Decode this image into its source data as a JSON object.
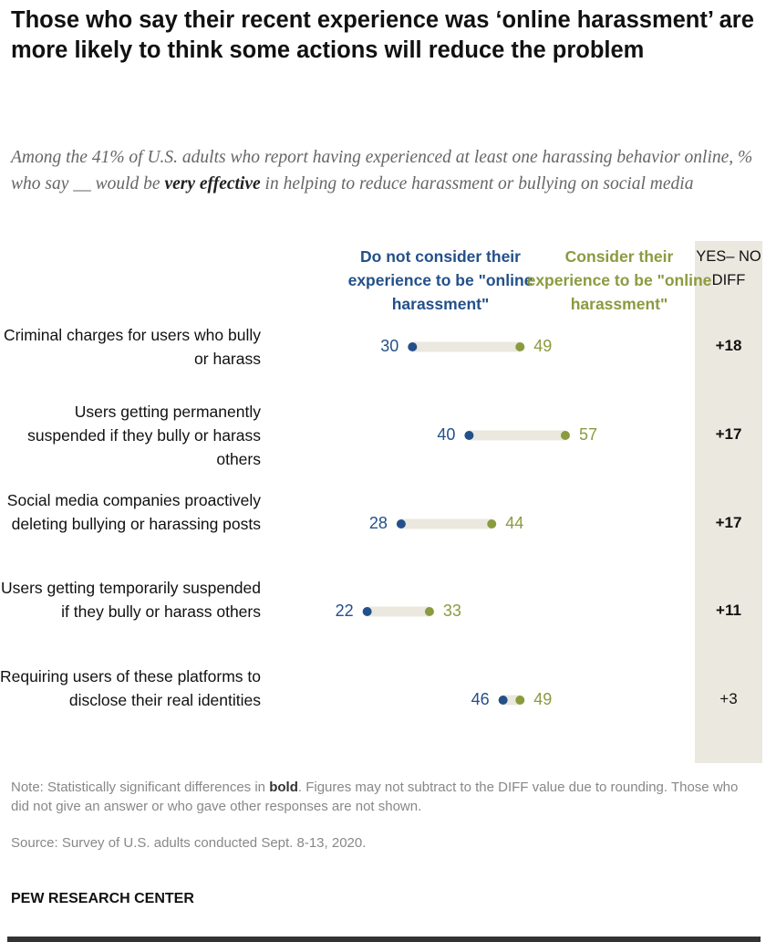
{
  "chart_data": {
    "type": "dot",
    "title": "Those who say their recent experience was ‘online harassment’ are more likely to think some actions will reduce the problem",
    "subtitle_parts": [
      "Among the 41% of U.S. adults who report having experienced at least one harassing behavior online, % who say __ would be ",
      "very effective",
      " in helping to reduce harassment or bullying on social media"
    ],
    "series": [
      {
        "name": "Do not consider their experience to be \"online harassment\"",
        "color": "#23508a",
        "values": [
          30,
          40,
          28,
          22,
          46
        ]
      },
      {
        "name": "Consider their experience to be \"online harassment\"",
        "color": "#8a9b3f",
        "values": [
          49,
          57,
          44,
          33,
          49
        ]
      }
    ],
    "categories": [
      "Criminal charges for users who bully or harass",
      "Users getting permanently suspended if they bully or harass others",
      "Social media companies proactively deleting bullying or harassing posts",
      "Users getting temporarily suspended if they bully or harass others",
      "Requiring users of these platforms to disclose their real identities"
    ],
    "diff_header": "YES– NO DIFF",
    "diffs": [
      "+18",
      "+17",
      "+17",
      "+11",
      "+3"
    ],
    "diff_bold": [
      true,
      true,
      true,
      true,
      false
    ],
    "connector_color": "#ebe8df"
  },
  "note_parts": [
    "Note: Statistically significant differences in ",
    "bold",
    ". Figures may not subtract to the DIFF value due to rounding. Those who did not give an answer or who gave other responses are not shown."
  ],
  "source": "Source: Survey of U.S. adults conducted Sept. 8-13, 2020.",
  "brand": "PEW RESEARCH CENTER"
}
